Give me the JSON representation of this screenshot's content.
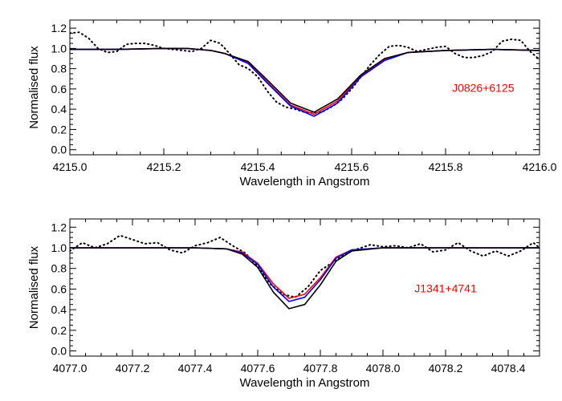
{
  "chart_data": [
    {
      "type": "line",
      "xlabel": "Wavelength in Angstrom",
      "ylabel": "Normalised flux",
      "xlim": [
        4215.0,
        4216.0
      ],
      "ylim": [
        -0.05,
        1.28
      ],
      "x_ticks": [
        "4215.0",
        "4215.2",
        "4215.4",
        "4215.6",
        "4215.8",
        "4216.0"
      ],
      "y_ticks": [
        "0.0",
        "0.2",
        "0.4",
        "0.6",
        "0.8",
        "1.0",
        "1.2"
      ],
      "annotation": {
        "text": "J0826+6125",
        "color": "#ff0000",
        "x": 4215.88,
        "y": 0.57
      },
      "series": [
        {
          "color": "#000000",
          "style": "dotted",
          "x": [
            4215.0,
            4215.02,
            4215.04,
            4215.06,
            4215.08,
            4215.1,
            4215.12,
            4215.14,
            4215.16,
            4215.18,
            4215.2,
            4215.22,
            4215.24,
            4215.26,
            4215.28,
            4215.3,
            4215.32,
            4215.34,
            4215.36,
            4215.38,
            4215.4,
            4215.42,
            4215.44,
            4215.46,
            4215.48,
            4215.5,
            4215.52,
            4215.54,
            4215.56,
            4215.58,
            4215.6,
            4215.62,
            4215.64,
            4215.66,
            4215.68,
            4215.7,
            4215.72,
            4215.74,
            4215.76,
            4215.78,
            4215.8,
            4215.82,
            4215.84,
            4215.86,
            4215.88,
            4215.9,
            4215.92,
            4215.94,
            4215.96,
            4215.98,
            4216.0
          ],
          "y": [
            1.15,
            1.16,
            1.1,
            1.0,
            0.96,
            0.97,
            1.04,
            1.05,
            1.05,
            1.03,
            1.0,
            0.99,
            0.98,
            0.97,
            1.0,
            1.08,
            1.05,
            0.95,
            0.84,
            0.8,
            0.72,
            0.58,
            0.47,
            0.42,
            0.4,
            0.37,
            0.36,
            0.38,
            0.43,
            0.5,
            0.6,
            0.72,
            0.84,
            0.94,
            1.02,
            1.03,
            1.01,
            0.97,
            0.99,
            1.01,
            1.02,
            0.95,
            0.91,
            0.91,
            0.93,
            0.97,
            1.07,
            1.09,
            1.08,
            0.97,
            0.89
          ]
        },
        {
          "color": "#ff0000",
          "style": "solid",
          "x": [
            4215.0,
            4215.1,
            4215.2,
            4215.25,
            4215.3,
            4215.33,
            4215.38,
            4215.42,
            4215.47,
            4215.52,
            4215.57,
            4215.62,
            4215.67,
            4215.72,
            4215.8,
            4215.9,
            4216.0
          ],
          "y": [
            0.99,
            0.99,
            1.0,
            1.0,
            0.98,
            0.95,
            0.86,
            0.67,
            0.44,
            0.35,
            0.48,
            0.73,
            0.89,
            0.96,
            0.98,
            0.99,
            0.98
          ]
        },
        {
          "color": "#0000ff",
          "style": "solid",
          "x": [
            4215.0,
            4215.1,
            4215.2,
            4215.25,
            4215.3,
            4215.33,
            4215.38,
            4215.42,
            4215.47,
            4215.52,
            4215.57,
            4215.62,
            4215.67,
            4215.72,
            4215.8,
            4215.9,
            4216.0
          ],
          "y": [
            0.99,
            0.99,
            1.0,
            1.0,
            0.98,
            0.95,
            0.85,
            0.66,
            0.43,
            0.33,
            0.46,
            0.72,
            0.88,
            0.96,
            0.98,
            0.99,
            0.98
          ]
        },
        {
          "color": "#000000",
          "style": "solid",
          "x": [
            4215.0,
            4215.1,
            4215.2,
            4215.25,
            4215.3,
            4215.33,
            4215.38,
            4215.42,
            4215.47,
            4215.52,
            4215.57,
            4215.62,
            4215.67,
            4215.72,
            4215.8,
            4215.9,
            4216.0
          ],
          "y": [
            0.99,
            0.99,
            1.0,
            1.0,
            0.98,
            0.95,
            0.87,
            0.69,
            0.46,
            0.37,
            0.5,
            0.74,
            0.9,
            0.96,
            0.98,
            0.99,
            0.98
          ]
        }
      ]
    },
    {
      "type": "line",
      "xlabel": "Wavelength in Angstrom",
      "ylabel": "Normalised flux",
      "xlim": [
        4077.0,
        4078.5
      ],
      "ylim": [
        -0.05,
        1.28
      ],
      "x_ticks": [
        "4077.0",
        "4077.2",
        "4077.4",
        "4077.6",
        "4077.8",
        "4078.0",
        "4078.2",
        "4078.4"
      ],
      "y_ticks": [
        "0.0",
        "0.2",
        "0.4",
        "0.6",
        "0.8",
        "1.0",
        "1.2"
      ],
      "annotation": {
        "text": "J1341+4741",
        "color": "#ff0000",
        "x": 4078.2,
        "y": 0.57
      },
      "series": [
        {
          "color": "#000000",
          "style": "dotted",
          "x": [
            4077.0,
            4077.04,
            4077.08,
            4077.12,
            4077.16,
            4077.2,
            4077.24,
            4077.28,
            4077.32,
            4077.36,
            4077.4,
            4077.44,
            4077.48,
            4077.52,
            4077.56,
            4077.6,
            4077.64,
            4077.68,
            4077.72,
            4077.76,
            4077.8,
            4077.84,
            4077.88,
            4077.92,
            4077.96,
            4078.0,
            4078.04,
            4078.08,
            4078.12,
            4078.16,
            4078.2,
            4078.24,
            4078.28,
            4078.32,
            4078.36,
            4078.4,
            4078.44,
            4078.48,
            4078.5
          ],
          "y": [
            0.97,
            1.05,
            1.0,
            1.04,
            1.12,
            1.08,
            1.04,
            1.05,
            0.98,
            0.95,
            1.02,
            1.05,
            1.1,
            1.02,
            0.95,
            0.82,
            0.65,
            0.55,
            0.52,
            0.62,
            0.78,
            0.86,
            0.94,
            0.99,
            1.03,
            1.01,
            1.02,
            1.0,
            1.04,
            0.96,
            0.98,
            1.05,
            0.97,
            0.92,
            0.97,
            0.92,
            0.97,
            1.05,
            1.0
          ]
        },
        {
          "color": "#ff0000",
          "style": "solid",
          "x": [
            4077.0,
            4077.2,
            4077.4,
            4077.5,
            4077.55,
            4077.6,
            4077.65,
            4077.7,
            4077.75,
            4077.8,
            4077.85,
            4077.9,
            4078.0,
            4078.2,
            4078.4,
            4078.5
          ],
          "y": [
            1.0,
            1.0,
            1.0,
            0.99,
            0.96,
            0.85,
            0.65,
            0.51,
            0.55,
            0.71,
            0.91,
            0.98,
            1.0,
            1.0,
            1.0,
            1.0
          ]
        },
        {
          "color": "#0000ff",
          "style": "solid",
          "x": [
            4077.0,
            4077.2,
            4077.4,
            4077.5,
            4077.55,
            4077.6,
            4077.65,
            4077.7,
            4077.75,
            4077.8,
            4077.85,
            4077.9,
            4078.0,
            4078.2,
            4078.4,
            4078.5
          ],
          "y": [
            1.0,
            1.0,
            1.0,
            0.99,
            0.95,
            0.84,
            0.62,
            0.48,
            0.52,
            0.69,
            0.9,
            0.98,
            1.0,
            1.0,
            1.0,
            1.0
          ]
        },
        {
          "color": "#000000",
          "style": "solid",
          "x": [
            4077.0,
            4077.2,
            4077.4,
            4077.5,
            4077.55,
            4077.6,
            4077.65,
            4077.7,
            4077.75,
            4077.8,
            4077.85,
            4077.9,
            4078.0,
            4078.2,
            4078.4,
            4078.5
          ],
          "y": [
            1.0,
            1.0,
            1.0,
            0.99,
            0.94,
            0.81,
            0.57,
            0.41,
            0.45,
            0.64,
            0.87,
            0.97,
            1.0,
            1.0,
            1.0,
            1.0
          ]
        }
      ]
    }
  ]
}
